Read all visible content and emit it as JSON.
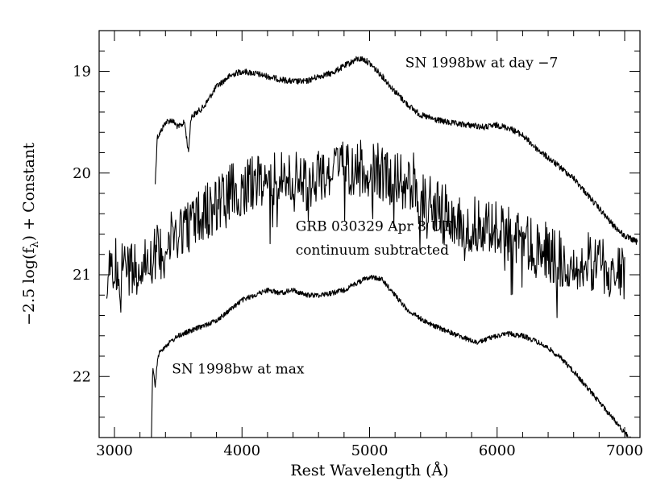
{
  "chart_data": {
    "type": "line",
    "title": "",
    "xlabel": "Rest Wavelength (Å)",
    "ylabel_parts": {
      "pre": "−2.5 log(f",
      "sub": "λ",
      "post": ") + Constant"
    },
    "xlim": [
      2880,
      7120
    ],
    "ylim": [
      22.6,
      18.6
    ],
    "y_inverted": true,
    "grid": false,
    "x_ticks": [
      3000,
      4000,
      5000,
      6000,
      7000
    ],
    "y_ticks": [
      19,
      20,
      21,
      22
    ],
    "x_tick_labels": [
      "3000",
      "4000",
      "5000",
      "6000",
      "7000"
    ],
    "y_tick_labels": [
      "19",
      "20",
      "21",
      "22"
    ],
    "series": [
      {
        "name": "SN 1998bw at day −7",
        "noise": 0.03,
        "x": [
          3320,
          3335,
          3360,
          3400,
          3450,
          3500,
          3550,
          3580,
          3600,
          3650,
          3700,
          3800,
          3900,
          3950,
          4000,
          4100,
          4200,
          4300,
          4400,
          4500,
          4600,
          4700,
          4800,
          4900,
          4950,
          5000,
          5100,
          5200,
          5300,
          5400,
          5500,
          5600,
          5700,
          5800,
          5900,
          6000,
          6100,
          6200,
          6300,
          6400,
          6500,
          6600,
          6700,
          6800,
          6900,
          7000,
          7050,
          7100
        ],
        "y": [
          20.1,
          19.65,
          19.6,
          19.5,
          19.48,
          19.55,
          19.5,
          19.8,
          19.45,
          19.4,
          19.35,
          19.15,
          19.05,
          19.02,
          19.0,
          19.02,
          19.05,
          19.08,
          19.1,
          19.1,
          19.05,
          19.02,
          18.95,
          18.88,
          18.88,
          18.92,
          19.05,
          19.2,
          19.33,
          19.43,
          19.47,
          19.5,
          19.52,
          19.53,
          19.55,
          19.53,
          19.56,
          19.63,
          19.75,
          19.85,
          19.95,
          20.05,
          20.2,
          20.35,
          20.5,
          20.62,
          20.65,
          20.68
        ]
      },
      {
        "name": "GRB 030329 Apr 8 UT continuum subtracted",
        "noise": 0.28,
        "x": [
          2940,
          3000,
          3100,
          3200,
          3300,
          3400,
          3500,
          3600,
          3700,
          3800,
          3900,
          4000,
          4100,
          4200,
          4300,
          4400,
          4500,
          4600,
          4700,
          4800,
          4900,
          5000,
          5100,
          5200,
          5300,
          5400,
          5500,
          5600,
          5700,
          5800,
          5900,
          6000,
          6100,
          6200,
          6300,
          6400,
          6500,
          6600,
          6700,
          6800,
          6900,
          7000
        ],
        "y": [
          21.1,
          20.9,
          20.95,
          20.9,
          20.8,
          20.75,
          20.55,
          20.5,
          20.4,
          20.3,
          20.2,
          20.15,
          20.1,
          20.1,
          20.05,
          20.05,
          20.1,
          20.05,
          20.0,
          19.95,
          19.95,
          19.95,
          20.0,
          20.05,
          20.15,
          20.25,
          20.3,
          20.35,
          20.45,
          20.5,
          20.5,
          20.55,
          20.6,
          20.65,
          20.75,
          20.8,
          20.85,
          20.85,
          20.9,
          20.9,
          20.95,
          21.0
        ]
      },
      {
        "name": "SN 1998bw at max",
        "noise": 0.025,
        "x": [
          3290,
          3300,
          3320,
          3340,
          3360,
          3400,
          3450,
          3500,
          3600,
          3700,
          3800,
          3900,
          4000,
          4100,
          4200,
          4300,
          4400,
          4500,
          4600,
          4700,
          4800,
          4900,
          5000,
          5050,
          5100,
          5200,
          5300,
          5400,
          5500,
          5600,
          5700,
          5800,
          5850,
          5900,
          6000,
          6100,
          6200,
          6300,
          6400,
          6500,
          6600,
          6700,
          6800,
          6900,
          7000,
          7050
        ],
        "y": [
          22.6,
          21.9,
          22.1,
          21.8,
          21.75,
          21.7,
          21.65,
          21.6,
          21.55,
          21.5,
          21.45,
          21.35,
          21.25,
          21.2,
          21.15,
          21.18,
          21.15,
          21.2,
          21.2,
          21.18,
          21.15,
          21.08,
          21.02,
          21.03,
          21.05,
          21.2,
          21.35,
          21.43,
          21.5,
          21.55,
          21.6,
          21.65,
          21.67,
          21.64,
          21.6,
          21.58,
          21.6,
          21.65,
          21.72,
          21.82,
          21.95,
          22.1,
          22.25,
          22.4,
          22.55,
          22.62
        ]
      }
    ],
    "annotations": [
      {
        "text": "SN 1998bw at day −7",
        "x": 5280,
        "y": 18.96
      },
      {
        "text": "GRB 030329 Apr 8 UT",
        "x": 4420,
        "y": 20.57
      },
      {
        "text": "continuum subtracted",
        "x": 4420,
        "y": 20.8
      },
      {
        "text": "SN 1998bw at max",
        "x": 3450,
        "y": 21.97
      }
    ]
  }
}
